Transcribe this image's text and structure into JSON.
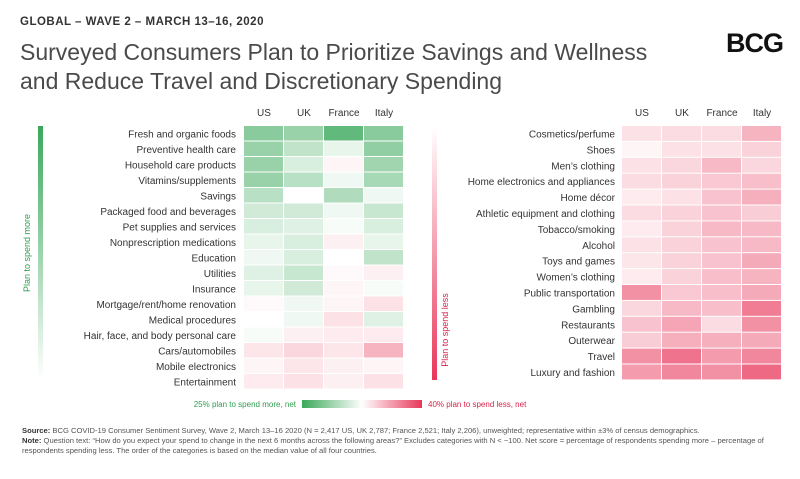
{
  "kicker": "GLOBAL – WAVE 2 – MARCH 13–16, 2020",
  "title_line1": "Surveyed Consumers Plan to Prioritize Savings and Wellness",
  "title_line2": "and Reduce Travel and Discretionary Spending",
  "logo": "BCG",
  "source_label": "Source:",
  "source_text": "BCG COVID-19 Consumer Sentiment Survey, Wave 2, March 13–16 2020 (N = 2,417 US, UK 2,787; France 2,521; Italy 2,206), unweighted; representative within ±3% of census demographics.",
  "note_label": "Note:",
  "note_text": "Question text: “How do you expect your spend to change in the next 6 months across the following areas?” Excludes categories with N < ~100. Net score = percentage of respondents spending more – percentage of respondents spending less. The order of the categories is based on the median value of all four countries.",
  "colors": {
    "more": "#3aa85a",
    "less": "#e8375a",
    "neutral": "#ffffff"
  },
  "chart_data": {
    "type": "heatmap",
    "columns": [
      "US",
      "UK",
      "France",
      "Italy"
    ],
    "left_axis_label": "Plan to spend more",
    "right_axis_label": "Plan to spend less",
    "legend_more": "25% plan to spend more, net",
    "legend_less": "40% plan to spend less, net",
    "scale": {
      "max_more": 25,
      "max_less": -40
    },
    "left": {
      "rows": [
        "Fresh and organic foods",
        "Preventive health care",
        "Household care products",
        "Vitamins/supplements",
        "Savings",
        "Packaged food and beverages",
        "Pet supplies and services",
        "Nonprescription medications",
        "Education",
        "Utilities",
        "Insurance",
        "Mortgage/rent/home renovation",
        "Medical procedures",
        "Hair, face, and body personal care",
        "Cars/automobiles",
        "Mobile electronics",
        "Entertainment"
      ],
      "values": [
        [
          15,
          13,
          20,
          15
        ],
        [
          13,
          8,
          3,
          14
        ],
        [
          13,
          5,
          -2,
          12
        ],
        [
          13,
          9,
          2,
          11
        ],
        [
          9,
          0,
          10,
          2
        ],
        [
          6,
          6,
          2,
          7
        ],
        [
          5,
          4,
          1,
          5
        ],
        [
          3,
          5,
          -3,
          3
        ],
        [
          2,
          5,
          0,
          8
        ],
        [
          4,
          7,
          -1,
          -3
        ],
        [
          3,
          6,
          -2,
          1
        ],
        [
          -1,
          2,
          -2,
          -6
        ],
        [
          0,
          2,
          -6,
          4
        ],
        [
          1,
          -3,
          -4,
          -4
        ],
        [
          -5,
          -8,
          -5,
          -15
        ],
        [
          -2,
          -5,
          -3,
          -2
        ],
        [
          -4,
          -6,
          -3,
          -6
        ]
      ]
    },
    "right": {
      "rows": [
        "Cosmetics/perfume",
        "Shoes",
        "Men’s clothing",
        "Home electronics and appliances",
        "Home décor",
        "Athletic equipment and clothing",
        "Tobacco/smoking",
        "Alcohol",
        "Toys and games",
        "Women’s clothing",
        "Public transportation",
        "Gambling",
        "Restaurants",
        "Outerwear",
        "Travel",
        "Luxury and fashion"
      ],
      "values": [
        [
          -6,
          -7,
          -7,
          -15
        ],
        [
          -2,
          -6,
          -6,
          -9
        ],
        [
          -6,
          -8,
          -14,
          -8
        ],
        [
          -7,
          -9,
          -11,
          -13
        ],
        [
          -4,
          -6,
          -12,
          -16
        ],
        [
          -7,
          -9,
          -12,
          -10
        ],
        [
          -4,
          -9,
          -14,
          -14
        ],
        [
          -6,
          -9,
          -12,
          -14
        ],
        [
          -5,
          -9,
          -12,
          -17
        ],
        [
          -4,
          -9,
          -13,
          -15
        ],
        [
          -22,
          -11,
          -13,
          -17
        ],
        [
          -8,
          -14,
          -13,
          -26
        ],
        [
          -12,
          -18,
          -7,
          -22
        ],
        [
          -10,
          -16,
          -16,
          -17
        ],
        [
          -22,
          -28,
          -20,
          -24
        ],
        [
          -20,
          -24,
          -22,
          -30
        ]
      ]
    }
  }
}
